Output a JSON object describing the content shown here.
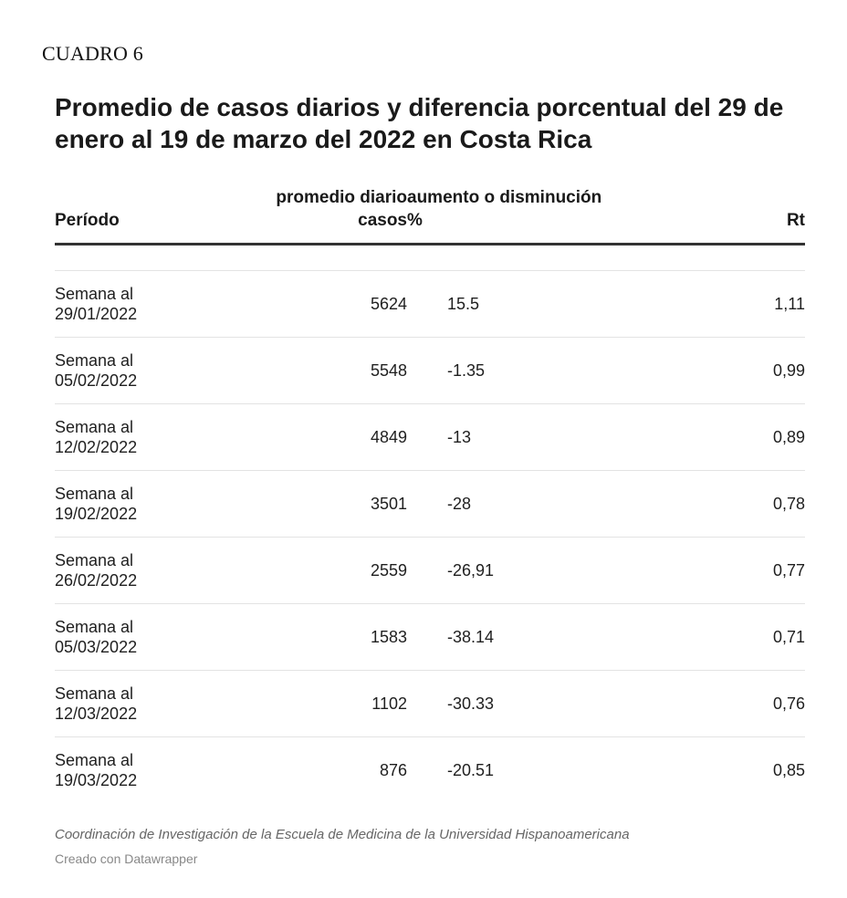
{
  "label": "CUADRO 6",
  "chart_data": {
    "type": "table",
    "title": "Promedio de casos diarios y diferencia porcentual del 29 de enero al 19 de marzo del 2022 en Costa Rica",
    "columns": [
      {
        "line1": "",
        "line2": "Período"
      },
      {
        "line1": "promedio diario",
        "line2": "casos"
      },
      {
        "line1": "aumento o disminución",
        "line2": "%"
      },
      {
        "line1": "",
        "line2": "Rt"
      }
    ],
    "rows": [
      {
        "periodo_1": "Semana al",
        "periodo_2": "29/01/2022",
        "promedio": "5624",
        "cambio": "15.5",
        "rt": "1,11"
      },
      {
        "periodo_1": "Semana al",
        "periodo_2": "05/02/2022",
        "promedio": "5548",
        "cambio": "-1.35",
        "rt": "0,99"
      },
      {
        "periodo_1": "Semana al",
        "periodo_2": "12/02/2022",
        "promedio": "4849",
        "cambio": "-13",
        "rt": "0,89"
      },
      {
        "periodo_1": "Semana al",
        "periodo_2": "19/02/2022",
        "promedio": "3501",
        "cambio": "-28",
        "rt": "0,78"
      },
      {
        "periodo_1": "Semana al",
        "periodo_2": "26/02/2022",
        "promedio": "2559",
        "cambio": "-26,91",
        "rt": "0,77"
      },
      {
        "periodo_1": "Semana al",
        "periodo_2": "05/03/2022",
        "promedio": "1583",
        "cambio": "-38.14",
        "rt": "0,71"
      },
      {
        "periodo_1": "Semana al",
        "periodo_2": "12/03/2022",
        "promedio": "1102",
        "cambio": "-30.33",
        "rt": "0,76"
      },
      {
        "periodo_1": "Semana al",
        "periodo_2": "19/03/2022",
        "promedio": "876",
        "cambio": "-20.51",
        "rt": "0,85"
      }
    ],
    "notes": "Coordinación de Investigación de la Escuela de Medicina de la Universidad Hispanoamericana",
    "credit": "Creado con Datawrapper"
  }
}
